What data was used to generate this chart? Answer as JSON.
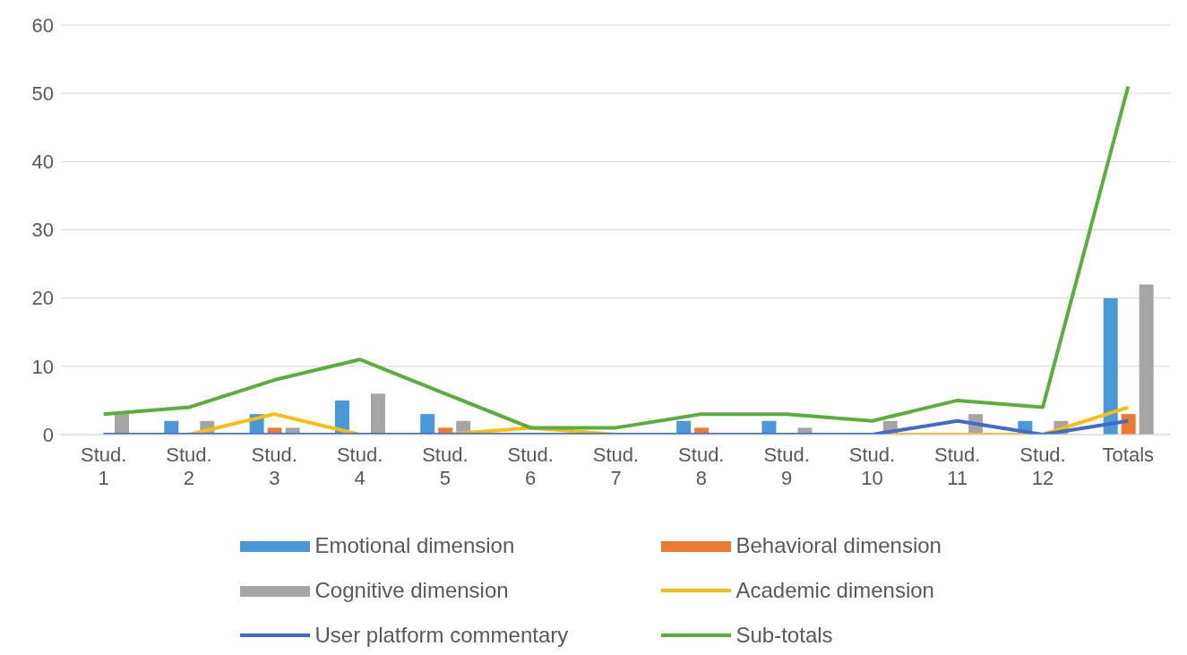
{
  "chart_data": {
    "type": "bar",
    "categories": [
      "Stud. 1",
      "Stud. 2",
      "Stud. 3",
      "Stud. 4",
      "Stud. 5",
      "Stud. 6",
      "Stud. 7",
      "Stud. 8",
      "Stud. 9",
      "Stud. 10",
      "Stud. 11",
      "Stud. 12",
      "Totals"
    ],
    "series": [
      {
        "name": "Emotional dimension",
        "color": "#4a98d8",
        "values": [
          0,
          2,
          3,
          5,
          3,
          0,
          0,
          2,
          2,
          0,
          0,
          2,
          20
        ]
      },
      {
        "name": "Behavioral dimension",
        "color": "#ec7a30",
        "values": [
          0,
          0,
          1,
          0,
          1,
          0,
          0,
          1,
          0,
          0,
          0,
          0,
          3
        ]
      },
      {
        "name": "Cognitive dimension",
        "color": "#a5a5a5",
        "values": [
          3,
          2,
          1,
          6,
          2,
          0,
          0,
          0,
          1,
          2,
          3,
          2,
          22
        ]
      },
      {
        "name": "Academic dimension",
        "type": "line",
        "color": "#fbbd10",
        "values": [
          0,
          0,
          3,
          0,
          0,
          1,
          0,
          0,
          0,
          0,
          0,
          0,
          4
        ]
      },
      {
        "name": "User platform commentary",
        "type": "line",
        "color": "#3f6ccb",
        "values": [
          0,
          0,
          0,
          0,
          0,
          0,
          0,
          0,
          0,
          0,
          2,
          0,
          2
        ]
      },
      {
        "name": "Sub-totals",
        "type": "line",
        "color": "#5aae3a",
        "values": [
          3,
          4,
          8,
          11,
          6,
          1,
          1,
          3,
          3,
          2,
          5,
          4,
          51
        ]
      }
    ],
    "ylim": [
      0,
      60
    ],
    "yticks": [
      0,
      10,
      20,
      30,
      40,
      50,
      60
    ],
    "grid": "y",
    "legend": "bottom",
    "marker": "none"
  }
}
